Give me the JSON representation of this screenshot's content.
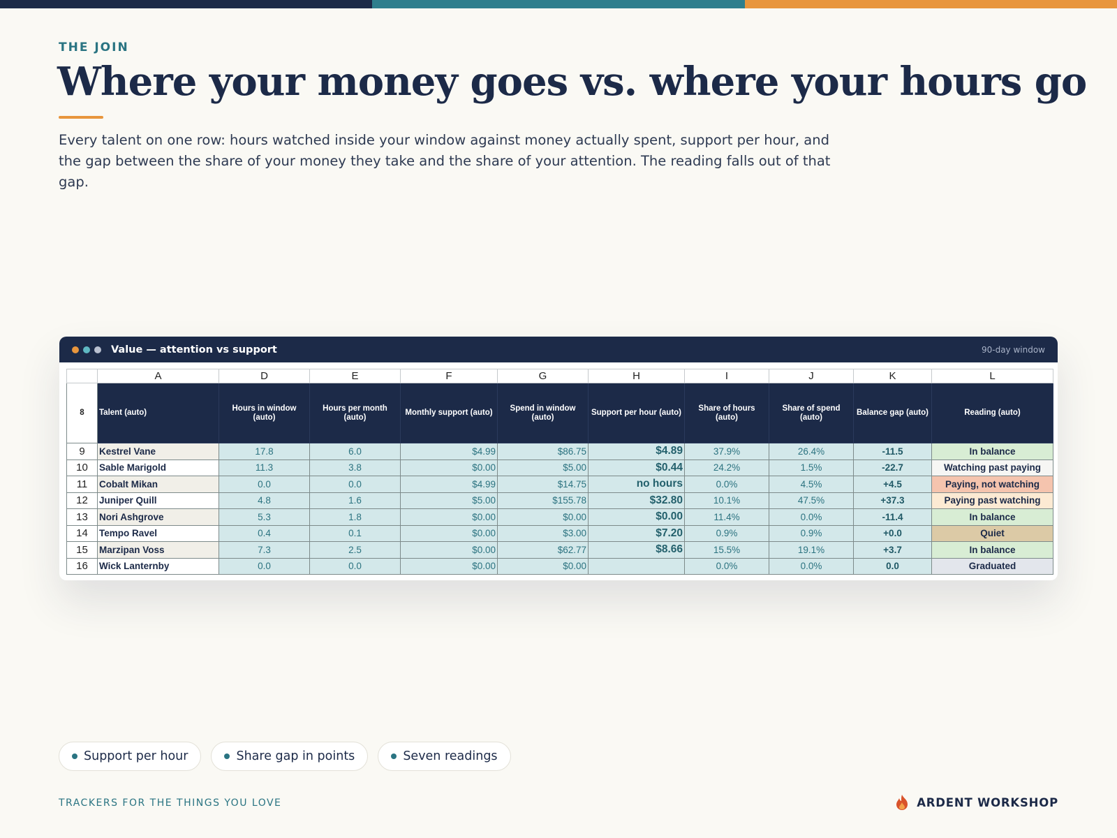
{
  "eyebrow": "THE JOIN",
  "title": "Where your money goes vs. where your hours go",
  "description": "Every talent on one row: hours watched inside your window against money actually spent, support per hour, and the gap between the share of your money they take and the share of your attention. The reading falls out of that gap.",
  "window": {
    "title": "Value — attention vs support",
    "badge": "90-day window"
  },
  "sheet": {
    "columns": [
      "A",
      "D",
      "E",
      "F",
      "G",
      "H",
      "I",
      "J",
      "K",
      "L"
    ],
    "header": {
      "row": 8,
      "cells": [
        "Talent (auto)",
        "Hours in window (auto)",
        "Hours per month (auto)",
        "Monthly support (auto)",
        "Spend in window (auto)",
        "Support per hour (auto)",
        "Share of hours (auto)",
        "Share of spend (auto)",
        "Balance gap (auto)",
        "Reading (auto)"
      ]
    },
    "rows": [
      {
        "row": 9,
        "cells": [
          "Kestrel Vane",
          "17.8",
          "6.0",
          "$4.99",
          "$86.75",
          "$4.89",
          "37.9%",
          "26.4%",
          "-11.5",
          "In balance"
        ]
      },
      {
        "row": 10,
        "cells": [
          "Sable Marigold",
          "11.3",
          "3.8",
          "$0.00",
          "$5.00",
          "$0.44",
          "24.2%",
          "1.5%",
          "-22.7",
          "Watching past paying"
        ]
      },
      {
        "row": 11,
        "cells": [
          "Cobalt Mikan",
          "0.0",
          "0.0",
          "$4.99",
          "$14.75",
          "no hours",
          "0.0%",
          "4.5%",
          "+4.5",
          "Paying, not watching"
        ]
      },
      {
        "row": 12,
        "cells": [
          "Juniper Quill",
          "4.8",
          "1.6",
          "$5.00",
          "$155.78",
          "$32.80",
          "10.1%",
          "47.5%",
          "+37.3",
          "Paying past watching"
        ]
      },
      {
        "row": 13,
        "cells": [
          "Nori Ashgrove",
          "5.3",
          "1.8",
          "$0.00",
          "$0.00",
          "$0.00",
          "11.4%",
          "0.0%",
          "-11.4",
          "In balance"
        ]
      },
      {
        "row": 14,
        "cells": [
          "Tempo Ravel",
          "0.4",
          "0.1",
          "$0.00",
          "$3.00",
          "$7.20",
          "0.9%",
          "0.9%",
          "+0.0",
          "Quiet"
        ]
      },
      {
        "row": 15,
        "cells": [
          "Marzipan Voss",
          "7.3",
          "2.5",
          "$0.00",
          "$62.77",
          "$8.66",
          "15.5%",
          "19.1%",
          "+3.7",
          "In balance"
        ]
      },
      {
        "row": 16,
        "cells": [
          "Wick Lanternby",
          "0.0",
          "0.0",
          "$0.00",
          "$0.00",
          null,
          "0.0%",
          "0.0%",
          "0.0",
          "Graduated"
        ]
      }
    ]
  },
  "pills": [
    "Support per hour",
    "Share gap in points",
    "Seven readings"
  ],
  "footer": {
    "tagline": "TRACKERS FOR THE THINGS YOU LOVE",
    "brand": "ARDENT WORKSHOP"
  }
}
